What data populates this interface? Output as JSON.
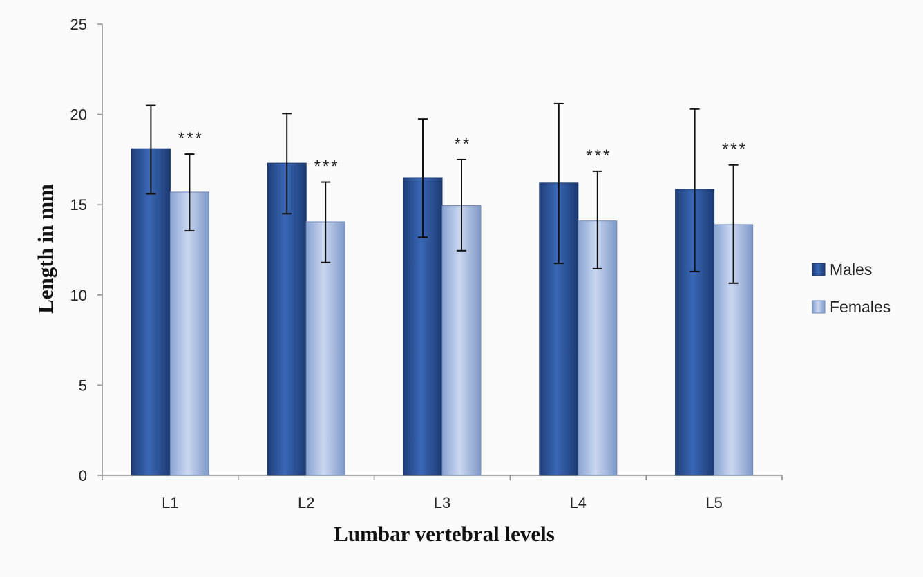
{
  "chart_data": {
    "type": "bar",
    "title": "",
    "xlabel": "Lumbar vertebral levels",
    "ylabel": "Length in mm",
    "ylim": [
      0,
      25
    ],
    "yticks": [
      0,
      5,
      10,
      15,
      20,
      25
    ],
    "grid": false,
    "legend_position": "right",
    "categories": [
      "L1",
      "L2",
      "L3",
      "L4",
      "L5"
    ],
    "series": [
      {
        "name": "Males",
        "color": "#2f5597",
        "values": [
          18.1,
          17.3,
          16.5,
          16.2,
          15.85
        ],
        "error_low": [
          15.6,
          14.5,
          13.2,
          11.75,
          11.3
        ],
        "error_high": [
          20.5,
          20.05,
          19.75,
          20.6,
          20.3
        ]
      },
      {
        "name": "Females",
        "color": "#9bb3dd",
        "values": [
          15.7,
          14.05,
          14.95,
          14.1,
          13.9
        ],
        "error_low": [
          13.55,
          11.8,
          12.45,
          11.45,
          10.65
        ],
        "error_high": [
          17.8,
          16.25,
          17.5,
          16.85,
          17.2
        ]
      }
    ],
    "annotations": [
      "***",
      "***",
      "**",
      "***",
      "***"
    ]
  }
}
